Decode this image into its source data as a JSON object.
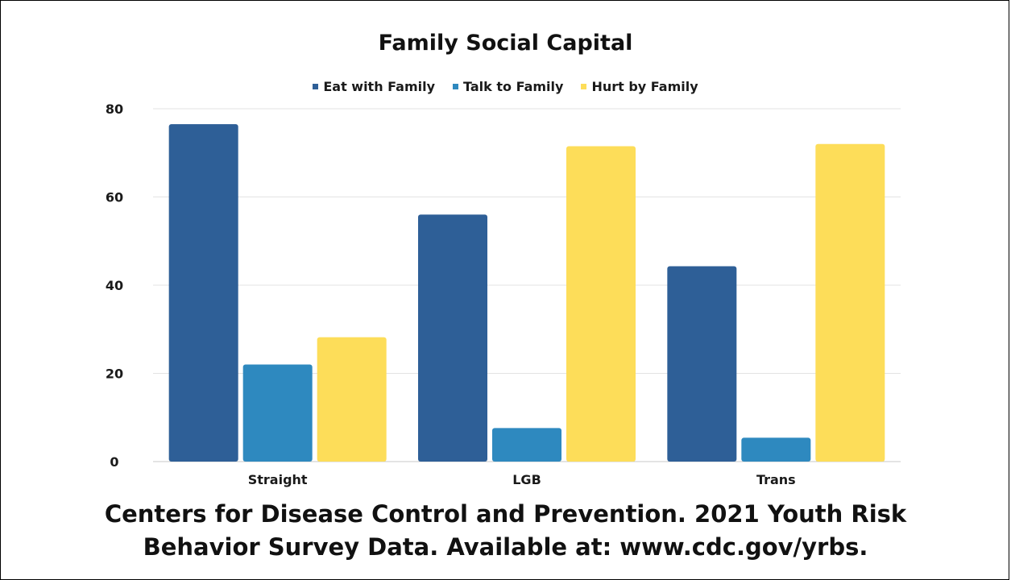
{
  "chart_data": {
    "type": "bar",
    "title": "Family Social Capital",
    "categories": [
      "Straight",
      "LGB",
      "Trans"
    ],
    "series": [
      {
        "name": "Eat with Family",
        "color": "#2e5f97",
        "values": [
          76.5,
          56.0,
          44.3
        ]
      },
      {
        "name": "Talk to Family",
        "color": "#2e89bf",
        "values": [
          22.0,
          7.6,
          5.4
        ]
      },
      {
        "name": "Hurt by Family",
        "color": "#fddd59",
        "values": [
          28.2,
          71.5,
          72.0
        ]
      }
    ],
    "xlabel": "",
    "ylabel": "",
    "ylim": [
      0,
      80
    ],
    "yticks": [
      "0",
      "20",
      "40",
      "60",
      "80"
    ],
    "grid": true,
    "legend_position": "top"
  },
  "source": {
    "line1": "Centers for Disease Control and Prevention. 2021 Youth Risk",
    "line2": "Behavior Survey Data. Available at: www.cdc.gov/yrbs."
  }
}
